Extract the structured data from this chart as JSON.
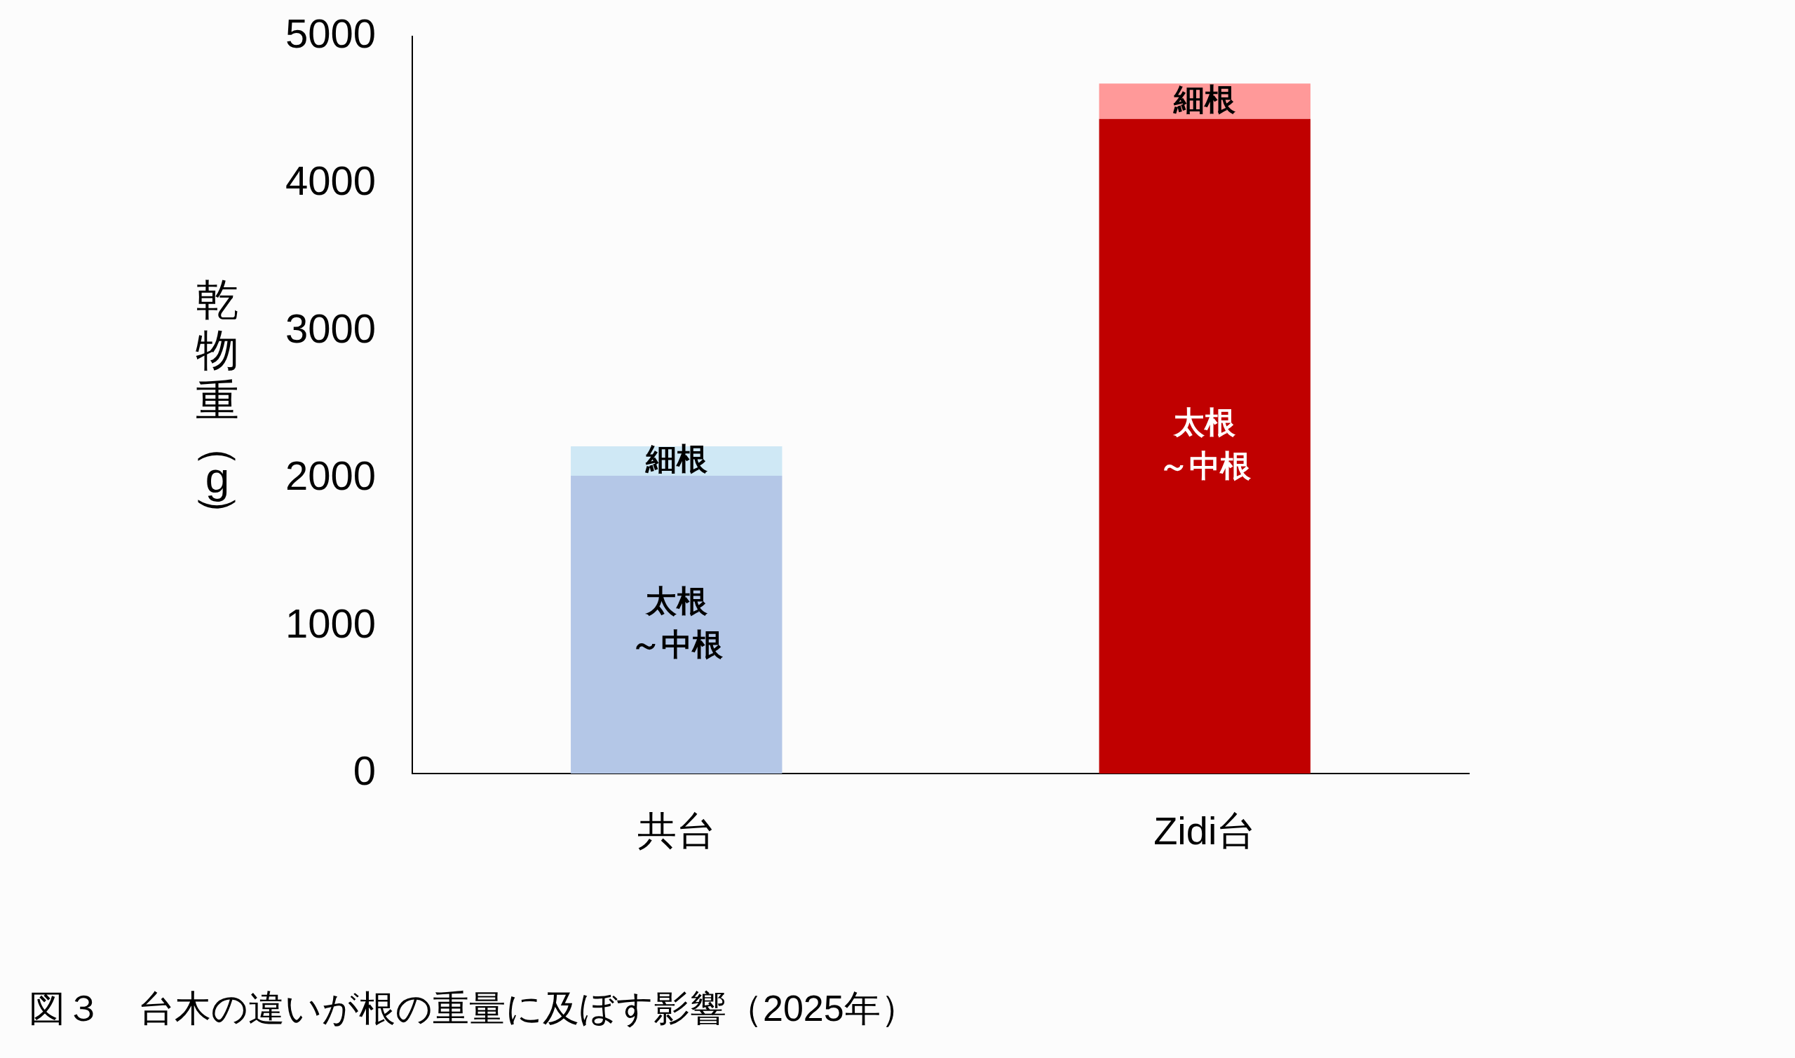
{
  "chart_data": {
    "type": "bar",
    "title": "図３　台木の違いが根の重量に及ぼす影響（2025年）",
    "ylabel": "乾物重（g）",
    "categories": [
      "共台",
      "Zidi台"
    ],
    "series": [
      {
        "name": "太根～中根",
        "colors": [
          "#b4c7e7",
          "#c00000"
        ],
        "values": [
          2020,
          4440
        ]
      },
      {
        "name": "細根",
        "colors": [
          "#cfe8f5",
          "#ff9999"
        ],
        "values": [
          200,
          240
        ]
      }
    ],
    "stacked": true,
    "ylim": [
      0,
      5000
    ],
    "yticks": [
      0,
      1000,
      2000,
      3000,
      4000,
      5000
    ]
  }
}
